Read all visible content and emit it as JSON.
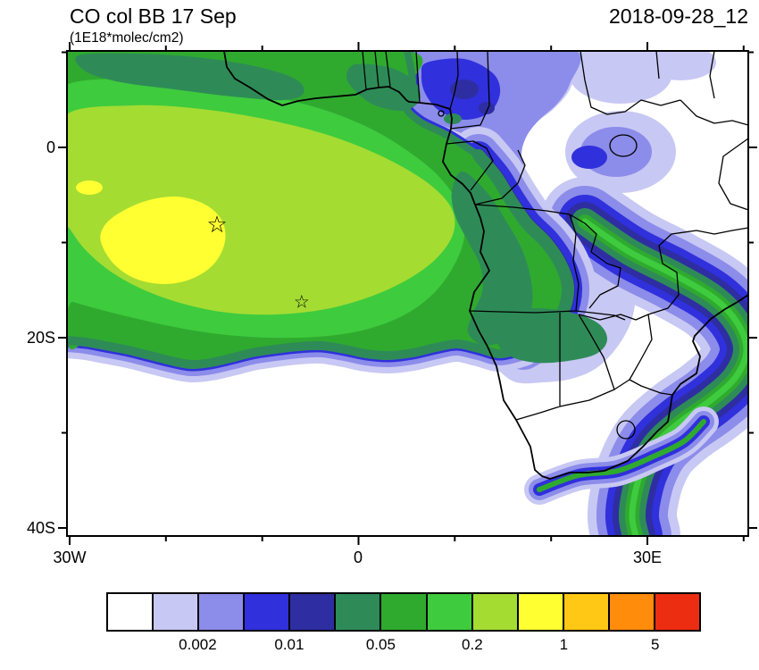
{
  "header": {
    "title": "CO col BB 17 Sep",
    "subtitle": "(1E18*molec/cm2)",
    "datetime": "2018-09-28_12"
  },
  "axes": {
    "y_labels": [
      {
        "text": "0"
      },
      {
        "text": "20S"
      },
      {
        "text": "40S"
      }
    ],
    "x_labels": [
      {
        "text": "30W"
      },
      {
        "text": "0"
      },
      {
        "text": "30E"
      }
    ]
  },
  "colorbar": {
    "colors": [
      "#ffffff",
      "#c8c8f4",
      "#8c8cea",
      "#3030dc",
      "#2e2ea2",
      "#2e8b57",
      "#2faa2f",
      "#3ecb3e",
      "#a4dc32",
      "#ffff32",
      "#ffc814",
      "#ff8c0a",
      "#ec2d12"
    ],
    "labels": [
      {
        "text": "0.002",
        "boundary": 2
      },
      {
        "text": "0.01",
        "boundary": 4
      },
      {
        "text": "0.05",
        "boundary": 6
      },
      {
        "text": "0.2",
        "boundary": 8
      },
      {
        "text": "1",
        "boundary": 10
      },
      {
        "text": "5",
        "boundary": 12
      }
    ]
  },
  "chart_data": {
    "type": "heatmap",
    "subtype": "filled_contour_map",
    "title": "CO col BB 17 Sep",
    "units": "1E18*molec/cm2",
    "valid_datetime": "2018-09-28_12",
    "extent": {
      "lon_min": -30,
      "lon_max": 40,
      "lat_min": -41,
      "lat_max": 10
    },
    "axis_ticks": {
      "x": [
        "30W",
        "0",
        "30E"
      ],
      "y": [
        "0",
        "20S",
        "40S"
      ]
    },
    "contour_levels": [
      0.001,
      0.002,
      0.005,
      0.01,
      0.02,
      0.05,
      0.1,
      0.2,
      0.5,
      1,
      2,
      5
    ],
    "labeled_levels": [
      0.002,
      0.01,
      0.05,
      0.2,
      1,
      5
    ],
    "palette_size": 13,
    "markers": [
      {
        "symbol": "star",
        "glyph": "☆",
        "lon": -14.7,
        "lat": -8.1
      },
      {
        "symbol": "star",
        "glyph": "☆",
        "lon": -5.9,
        "lat": -16.2
      }
    ],
    "features": [
      "Africa coastline",
      "country borders",
      "Lake Victoria",
      "Lesotho"
    ],
    "field_summary": [
      {
        "region": "South Atlantic biomass-burning plume core (20W-10W, 6S-15S)",
        "approx_value": "1-2"
      },
      {
        "region": "Main plume (30W-10E, 0-20S)",
        "approx_value": "0.2-1"
      },
      {
        "region": "Gulf of Guinea / 0-8N band",
        "approx_value": "0.05-0.5"
      },
      {
        "region": "Congo basin and Angola (land)",
        "approx_value": "0.05-0.5"
      },
      {
        "region": "Nigeria-Cameroon sector",
        "approx_value": "0.002-0.02"
      },
      {
        "region": "East Africa / Tanzania band",
        "approx_value": "0.005-0.05"
      },
      {
        "region": "SE band across Zimbabwe-Mozambique to Indian Ocean coast",
        "approx_value": "0.02-0.2"
      },
      {
        "region": "Ocean south of ~22S and NE Africa",
        "approx_value": "<0.001 (white)"
      }
    ]
  }
}
